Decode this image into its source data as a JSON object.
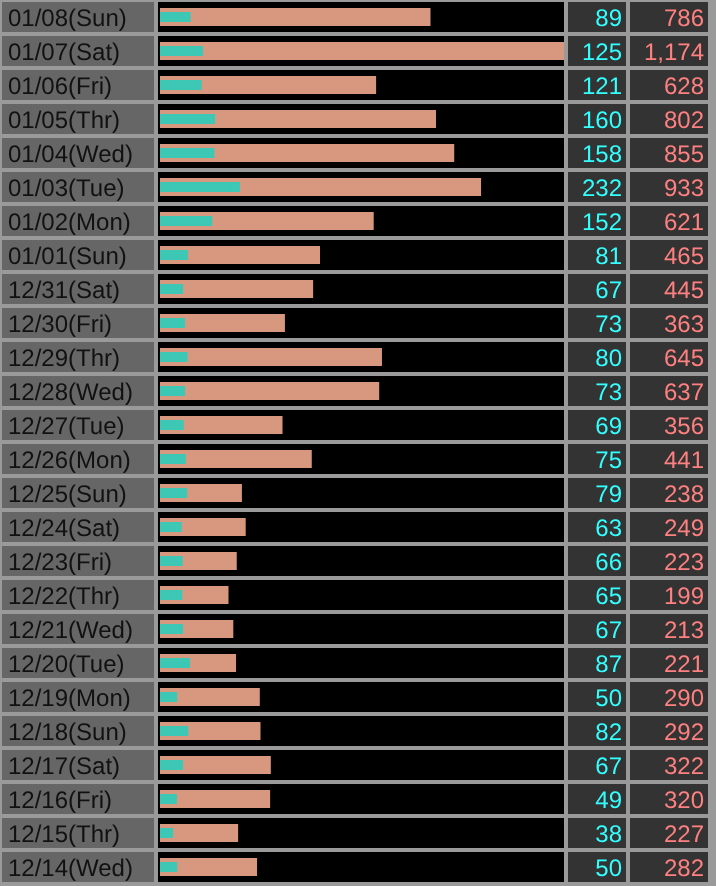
{
  "chart_data": {
    "type": "bar",
    "orientation": "horizontal",
    "categories": [
      "01/08(Sun)",
      "01/07(Sat)",
      "01/06(Fri)",
      "01/05(Thr)",
      "01/04(Wed)",
      "01/03(Tue)",
      "01/02(Mon)",
      "01/01(Sun)",
      "12/31(Sat)",
      "12/30(Fri)",
      "12/29(Thr)",
      "12/28(Wed)",
      "12/27(Tue)",
      "12/26(Mon)",
      "12/25(Sun)",
      "12/24(Sat)",
      "12/23(Fri)",
      "12/22(Thr)",
      "12/21(Wed)",
      "12/20(Tue)",
      "12/19(Mon)",
      "12/18(Sun)",
      "12/17(Sat)",
      "12/16(Fri)",
      "12/15(Thr)",
      "12/14(Wed)"
    ],
    "series": [
      {
        "color": "#d89880",
        "values": [
          786,
          1174,
          628,
          802,
          855,
          933,
          621,
          465,
          445,
          363,
          645,
          637,
          356,
          441,
          238,
          249,
          223,
          199,
          213,
          221,
          290,
          292,
          322,
          320,
          227,
          282
        ],
        "value_labels": [
          "786",
          "1,174",
          "628",
          "802",
          "855",
          "933",
          "621",
          "465",
          "445",
          "363",
          "645",
          "637",
          "356",
          "441",
          "238",
          "249",
          "223",
          "199",
          "213",
          "221",
          "290",
          "292",
          "322",
          "320",
          "227",
          "282"
        ]
      },
      {
        "color": "#3cc8b4",
        "values": [
          89,
          125,
          121,
          160,
          158,
          232,
          152,
          81,
          67,
          73,
          80,
          73,
          69,
          75,
          79,
          63,
          66,
          65,
          67,
          87,
          50,
          82,
          67,
          49,
          38,
          50
        ],
        "value_labels": [
          "89",
          "125",
          "121",
          "160",
          "158",
          "232",
          "152",
          "81",
          "67",
          "73",
          "80",
          "73",
          "69",
          "75",
          "79",
          "63",
          "66",
          "65",
          "67",
          "87",
          "50",
          "82",
          "67",
          "49",
          "38",
          "50"
        ]
      }
    ]
  }
}
